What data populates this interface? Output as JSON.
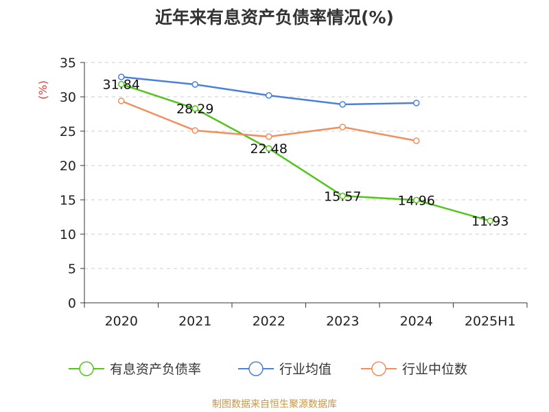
{
  "title": "近年来有息资产负债率情况(%)",
  "source": "制图数据来自恒生聚源数据库",
  "chart_data": {
    "type": "line",
    "title": "近年来有息资产负债率情况(%)",
    "ylabel": "(%)",
    "xlabel": "",
    "categories": [
      "2020",
      "2021",
      "2022",
      "2023",
      "2024",
      "2025H1"
    ],
    "ylim": [
      0,
      35
    ],
    "yticks": [
      0,
      5,
      10,
      15,
      20,
      25,
      30,
      35
    ],
    "grid": true,
    "legend_position": "bottom",
    "series": [
      {
        "name": "有息资产负债率",
        "color": "#52c41a",
        "values": [
          31.84,
          28.29,
          22.48,
          15.57,
          14.96,
          11.93
        ],
        "labels": [
          "31.84",
          "28.29",
          "22.48",
          "15.57",
          "14.96",
          "11.93"
        ]
      },
      {
        "name": "行业均值",
        "color": "#4a7fdb",
        "values": [
          32.9,
          31.8,
          30.2,
          28.9,
          29.1,
          null
        ]
      },
      {
        "name": "行业中位数",
        "color": "#f28e5c",
        "values": [
          29.4,
          25.1,
          24.2,
          25.6,
          23.6,
          null
        ]
      }
    ]
  }
}
